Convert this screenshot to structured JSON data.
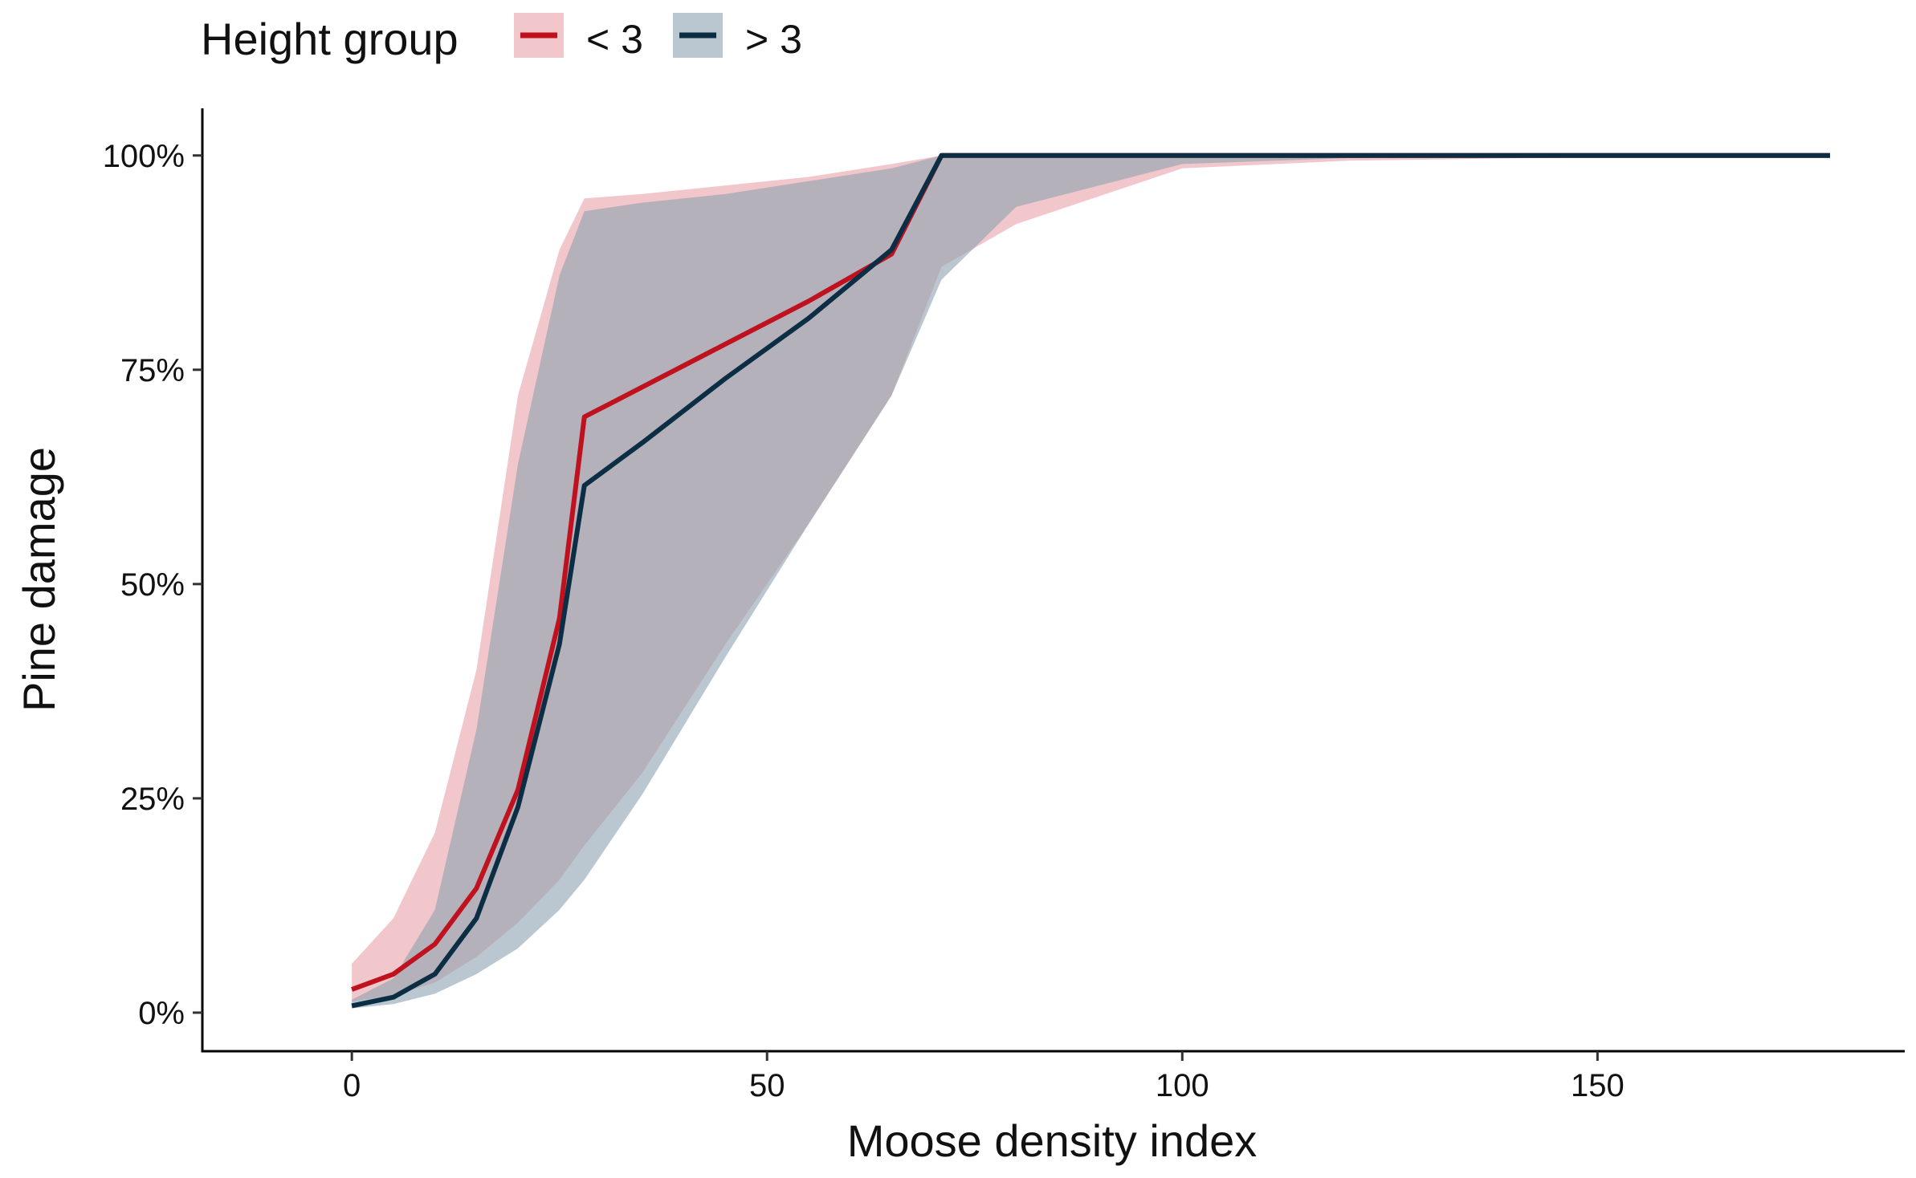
{
  "chart_data": {
    "type": "line",
    "title": "",
    "xlabel": "Moose density index",
    "ylabel": "Pine damage",
    "xlim": [
      -18,
      187
    ],
    "ylim": [
      -0.045,
      1.055
    ],
    "x_ticks": [
      0,
      50,
      100,
      150
    ],
    "x_tick_labels": [
      "0",
      "50",
      "100",
      "150"
    ],
    "y_ticks": [
      0,
      0.25,
      0.5,
      0.75,
      1.0
    ],
    "y_tick_labels": [
      "0%",
      "25%",
      "50%",
      "75%",
      "100%"
    ],
    "grid": false,
    "legend": {
      "title": "Height group",
      "position": "top-left",
      "entries": [
        "< 3",
        "> 3"
      ]
    },
    "series": [
      {
        "name": "< 3",
        "color": "#c0111f",
        "fill_color": "#e8a1a8",
        "x": [
          0,
          5,
          10,
          15,
          20,
          25,
          28,
          35,
          45,
          55,
          65,
          71,
          80,
          100,
          120,
          150,
          178
        ],
        "values": [
          0.027,
          0.045,
          0.08,
          0.145,
          0.26,
          0.46,
          0.695,
          0.73,
          0.78,
          0.83,
          0.885,
          1.0,
          1.0,
          1.0,
          1.0,
          1.0,
          1.0
        ],
        "lower": [
          0.013,
          0.02,
          0.035,
          0.065,
          0.105,
          0.155,
          0.195,
          0.28,
          0.43,
          0.57,
          0.72,
          0.87,
          0.92,
          0.985,
          0.994,
          0.998,
          0.999
        ],
        "upper": [
          0.057,
          0.11,
          0.21,
          0.4,
          0.72,
          0.89,
          0.95,
          0.955,
          0.965,
          0.975,
          0.99,
          1.0,
          1.0,
          1.0,
          1.0,
          1.0,
          1.0
        ]
      },
      {
        "name": "> 3",
        "color": "#0b2e45",
        "fill_color": "#8ea1b1",
        "x": [
          0,
          5,
          10,
          15,
          20,
          25,
          28,
          35,
          45,
          55,
          65,
          71,
          80,
          100,
          120,
          150,
          178
        ],
        "values": [
          0.008,
          0.018,
          0.045,
          0.11,
          0.24,
          0.43,
          0.615,
          0.665,
          0.74,
          0.81,
          0.89,
          1.0,
          1.0,
          1.0,
          1.0,
          1.0,
          1.0
        ],
        "lower": [
          0.005,
          0.01,
          0.022,
          0.045,
          0.075,
          0.12,
          0.155,
          0.255,
          0.415,
          0.57,
          0.72,
          0.855,
          0.94,
          0.99,
          0.997,
          0.999,
          1.0
        ],
        "upper": [
          0.015,
          0.04,
          0.12,
          0.33,
          0.64,
          0.86,
          0.935,
          0.945,
          0.955,
          0.97,
          0.985,
          1.0,
          1.0,
          1.0,
          1.0,
          1.0,
          1.0
        ]
      }
    ]
  }
}
